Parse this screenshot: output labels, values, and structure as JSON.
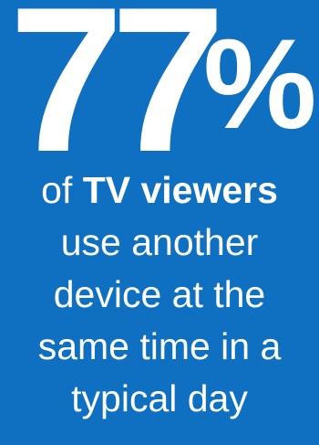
{
  "stat": {
    "number": "77",
    "percent_sign": "%"
  },
  "caption": {
    "line1_prefix": "of",
    "line1_emphasis": "TV viewers",
    "line2": "use another",
    "line3": "device at the",
    "line4": "same time in a",
    "line5": "typical day"
  },
  "colors": {
    "background": "#0f6fc0",
    "text": "#ffffff"
  }
}
